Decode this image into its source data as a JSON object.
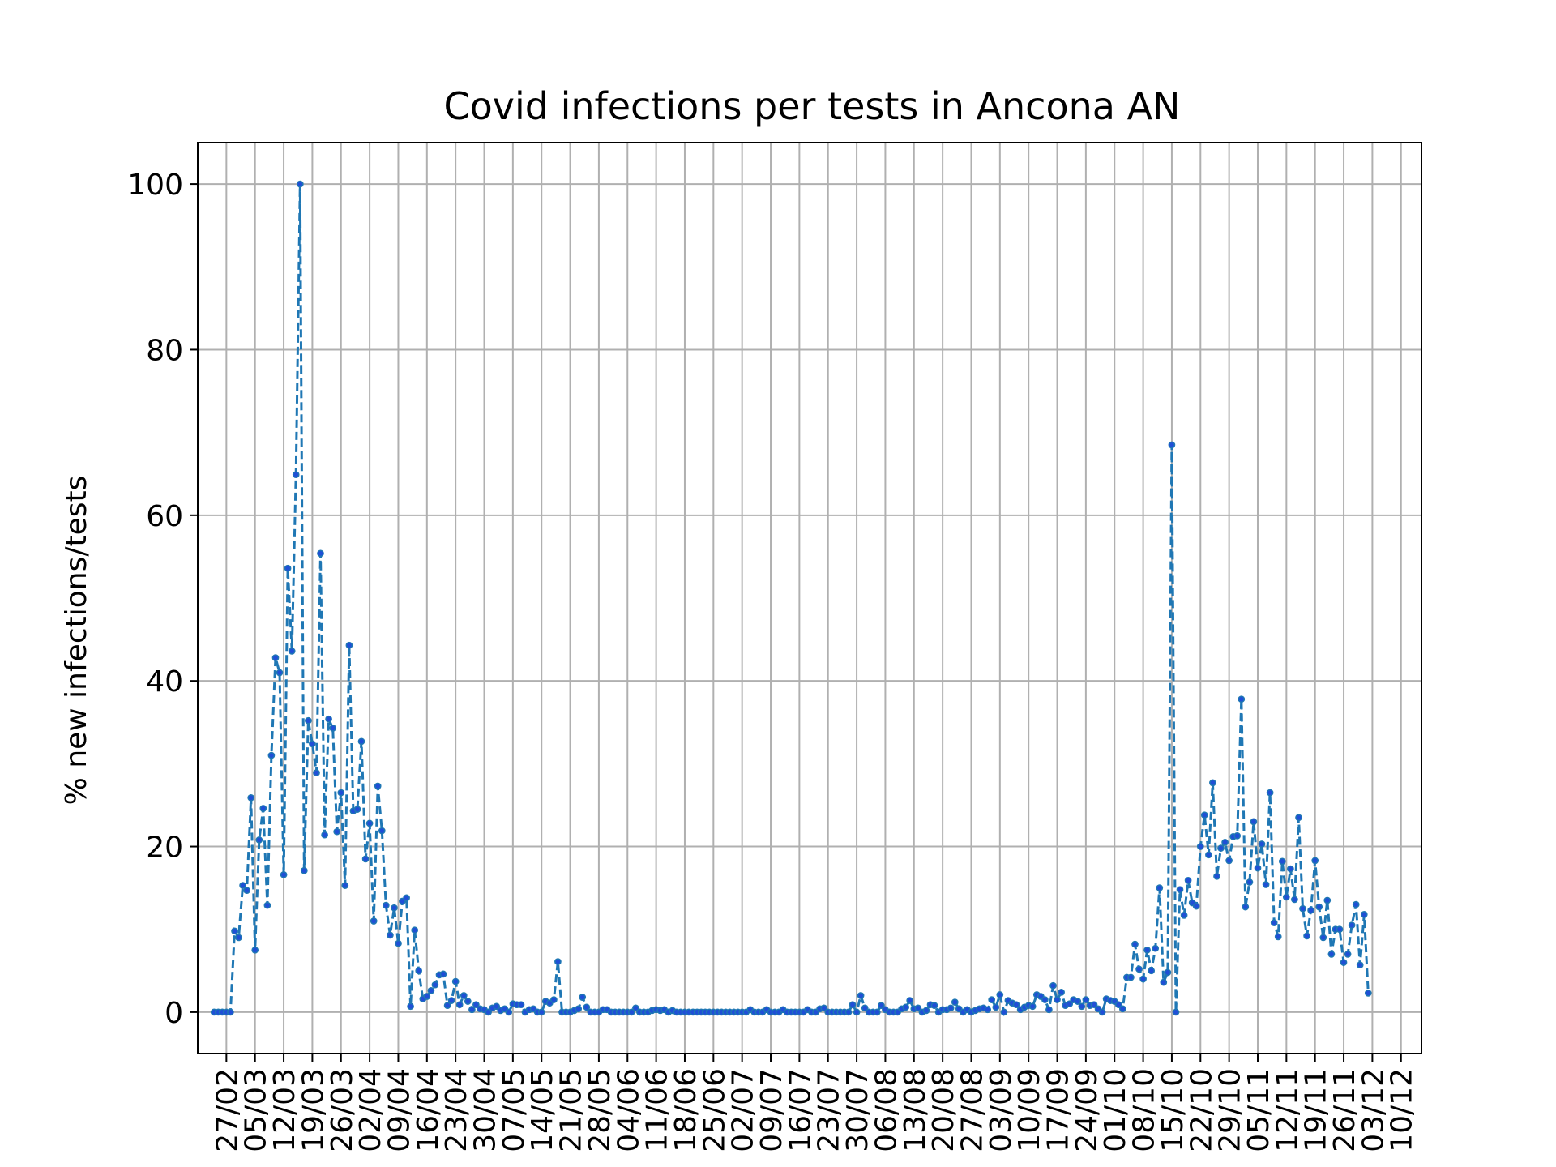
{
  "chart_data": {
    "type": "line",
    "title": "Covid infections per tests in Ancona AN",
    "xlabel": "",
    "ylabel": "% new infections/tests",
    "ylim": [
      -5,
      105
    ],
    "xlim": [
      "2020-02-20",
      "2020-12-15"
    ],
    "yticks": [
      0,
      20,
      40,
      60,
      80,
      100
    ],
    "xticks": [
      "27/02",
      "05/03",
      "12/03",
      "19/03",
      "26/03",
      "02/04",
      "09/04",
      "16/04",
      "23/04",
      "30/04",
      "07/05",
      "14/05",
      "21/05",
      "28/05",
      "04/06",
      "11/06",
      "18/06",
      "25/06",
      "02/07",
      "09/07",
      "16/07",
      "23/07",
      "30/07",
      "06/08",
      "13/08",
      "20/08",
      "27/08",
      "03/09",
      "10/09",
      "17/09",
      "24/09",
      "01/10",
      "08/10",
      "15/10",
      "22/10",
      "29/10",
      "05/11",
      "12/11",
      "19/11",
      "26/11",
      "03/12",
      "10/12"
    ],
    "xtick_dates": [
      "2020-02-27",
      "2020-03-05",
      "2020-03-12",
      "2020-03-19",
      "2020-03-26",
      "2020-04-02",
      "2020-04-09",
      "2020-04-16",
      "2020-04-23",
      "2020-04-30",
      "2020-05-07",
      "2020-05-14",
      "2020-05-21",
      "2020-05-28",
      "2020-06-04",
      "2020-06-11",
      "2020-06-18",
      "2020-06-25",
      "2020-07-02",
      "2020-07-09",
      "2020-07-16",
      "2020-07-23",
      "2020-07-30",
      "2020-08-06",
      "2020-08-13",
      "2020-08-20",
      "2020-08-27",
      "2020-09-03",
      "2020-09-10",
      "2020-09-17",
      "2020-09-24",
      "2020-10-01",
      "2020-10-08",
      "2020-10-15",
      "2020-10-22",
      "2020-10-29",
      "2020-11-05",
      "2020-11-12",
      "2020-11-19",
      "2020-11-26",
      "2020-12-03",
      "2020-12-10"
    ],
    "grid": true,
    "series": [
      {
        "name": "",
        "color": "#1f77b4",
        "marker_color": "#1f4fd6",
        "line_style": "dashed",
        "start_date": "2020-02-24",
        "values": [
          0,
          0,
          0,
          0,
          0,
          9.8,
          9,
          15.3,
          14.7,
          25.9,
          7.5,
          20.8,
          24.6,
          12.9,
          31,
          42.8,
          41,
          16.6,
          53.6,
          43.6,
          64.9,
          100,
          17.1,
          35.2,
          32.4,
          28.9,
          55.4,
          21.4,
          35.4,
          34.3,
          21.8,
          26.5,
          15.3,
          44.3,
          24.3,
          24.5,
          32.7,
          18.5,
          22.8,
          11,
          27.3,
          21.9,
          12.9,
          9.3,
          12.6,
          8.3,
          13.4,
          13.8,
          0.7,
          9.9,
          5,
          1.6,
          1.9,
          2.6,
          3.3,
          4.5,
          4.6,
          0.8,
          1.4,
          3.7,
          0.9,
          2,
          1.3,
          0.3,
          0.9,
          0.4,
          0.3,
          0,
          0.5,
          0.7,
          0.2,
          0.4,
          0,
          1,
          0.9,
          0.9,
          0,
          0.3,
          0.4,
          0,
          0,
          1.3,
          1.1,
          1.5,
          6.1,
          0,
          0,
          0,
          0.2,
          0.4,
          1.8,
          0.6,
          0,
          0,
          0,
          0.3,
          0.3,
          0,
          0,
          0,
          0,
          0,
          0,
          0.5,
          0,
          0,
          0,
          0.2,
          0.3,
          0.2,
          0.3,
          0,
          0.2,
          0,
          0,
          0,
          0,
          0,
          0,
          0,
          0,
          0,
          0,
          0,
          0,
          0,
          0,
          0,
          0,
          0,
          0,
          0.3,
          0,
          0,
          0,
          0.3,
          0,
          0,
          0,
          0.3,
          0,
          0,
          0,
          0,
          0,
          0.3,
          0,
          0,
          0.4,
          0.5,
          0,
          0,
          0,
          0,
          0,
          0,
          0.9,
          0,
          2,
          0.5,
          0,
          0,
          0,
          0.8,
          0.3,
          0,
          0,
          0,
          0.4,
          0.6,
          1.4,
          0.4,
          0.5,
          0,
          0.2,
          0.9,
          0.8,
          0,
          0.3,
          0.3,
          0.5,
          1.2,
          0.4,
          0,
          0.3,
          0,
          0.2,
          0.4,
          0.5,
          0.3,
          1.5,
          0.6,
          2.1,
          0,
          1.4,
          1.1,
          0.9,
          0.3,
          0.6,
          0.8,
          0.7,
          2.1,
          1.9,
          1.5,
          0.3,
          3.2,
          1.5,
          2.4,
          0.8,
          1,
          1.5,
          1.3,
          0.7,
          1.5,
          0.8,
          0.9,
          0.4,
          0,
          1.6,
          1.4,
          1.3,
          0.9,
          0.4,
          4.2,
          4.2,
          8.2,
          5.2,
          4,
          7.5,
          5,
          7.7,
          15,
          3.6,
          4.8,
          68.5,
          0,
          14.8,
          11.7,
          15.9,
          13.2,
          12.8,
          20,
          23.8,
          19,
          27.7,
          16.4,
          19.8,
          20.5,
          18.3,
          21.2,
          21.3,
          37.8,
          12.7,
          15.7,
          23,
          17.4,
          20.3,
          15.4,
          26.5,
          10.8,
          9.1,
          18.2,
          13.9,
          17.3,
          13.6,
          23.5,
          12.5,
          9.2,
          12.3,
          18.3,
          12.7,
          9,
          13.5,
          7,
          10,
          10,
          6,
          7,
          10.5,
          13,
          5.7,
          11.8,
          2.3
        ]
      }
    ]
  }
}
